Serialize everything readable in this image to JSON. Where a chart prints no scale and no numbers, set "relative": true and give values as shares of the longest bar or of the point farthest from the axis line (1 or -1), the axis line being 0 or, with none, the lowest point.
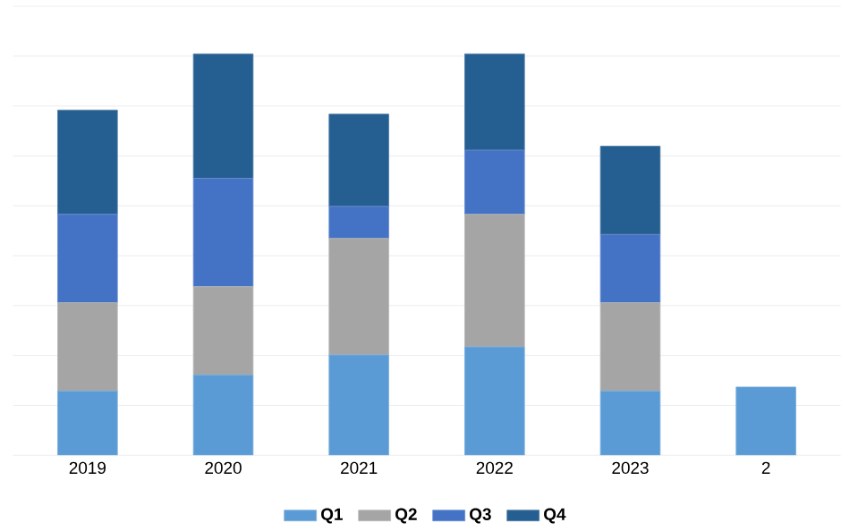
{
  "chart_data": {
    "type": "bar",
    "stacked": true,
    "relative": true,
    "grid": "y",
    "legend": "bottom",
    "categories": [
      "2019",
      "2020",
      "2021",
      "2022",
      "2023",
      "2"
    ],
    "series": [
      {
        "name": "Q1",
        "color": "#5b9bd5",
        "values": [
          0.16,
          0.2,
          0.25,
          0.27,
          0.16,
          0.17
        ]
      },
      {
        "name": "Q2",
        "color": "#a5a5a5",
        "values": [
          0.22,
          0.22,
          0.29,
          0.33,
          0.22,
          null
        ]
      },
      {
        "name": "Q3",
        "color": "#4472c4",
        "values": [
          0.22,
          0.27,
          0.08,
          0.16,
          0.17,
          null
        ]
      },
      {
        "name": "Q4",
        "color": "#255e91",
        "values": [
          0.26,
          0.31,
          0.23,
          0.24,
          0.22,
          null
        ]
      }
    ]
  }
}
